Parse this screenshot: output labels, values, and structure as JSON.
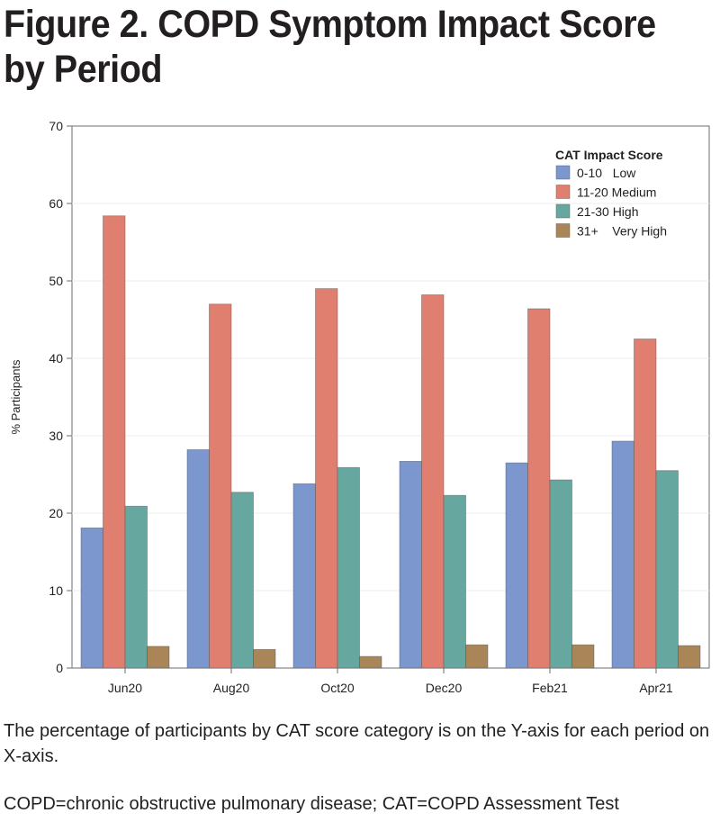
{
  "title": "Figure 2. COPD Symptom Impact Score by Period",
  "caption": "The percentage of participants by CAT score category is on the Y-axis for each period on X-axis.",
  "footnote": "COPD=chronic obstructive pulmonary disease;  CAT=COPD Assessment Test",
  "chart_data": {
    "type": "bar",
    "ylabel": "% Participants",
    "xlabel": "",
    "ylim": [
      0,
      70
    ],
    "yticks": [
      0,
      10,
      20,
      30,
      40,
      50,
      60,
      70
    ],
    "grid": true,
    "legend_title": "CAT Impact Score",
    "legend_position": "top-right",
    "categories": [
      "Jun20",
      "Aug20",
      "Oct20",
      "Dec20",
      "Feb21",
      "Apr21"
    ],
    "series": [
      {
        "name": "0-10   Low",
        "color": "#7b97cd",
        "values": [
          18.1,
          28.2,
          23.8,
          26.7,
          26.5,
          29.3
        ]
      },
      {
        "name": "11-20 Medium",
        "color": "#e07f70",
        "values": [
          58.4,
          47.0,
          49.0,
          48.2,
          46.4,
          42.5
        ]
      },
      {
        "name": "21-30 High",
        "color": "#66a8a0",
        "values": [
          20.9,
          22.7,
          25.9,
          22.3,
          24.3,
          25.5
        ]
      },
      {
        "name": "31+    Very High",
        "color": "#a98557",
        "values": [
          2.8,
          2.4,
          1.5,
          3.0,
          3.0,
          2.9
        ]
      }
    ]
  }
}
